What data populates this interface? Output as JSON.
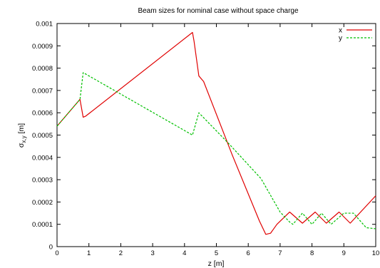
{
  "chart_data": {
    "type": "line",
    "title": "Beam sizes for nominal case without space charge",
    "xlabel": "z [m]",
    "ylabel": "σx,y [m]",
    "ylabel_parts": {
      "base": "σ",
      "sub": "x,y",
      "unit": " [m]"
    },
    "xlim": [
      0,
      10
    ],
    "ylim": [
      0,
      0.001
    ],
    "xticks": [
      0,
      1,
      2,
      3,
      4,
      5,
      6,
      7,
      8,
      9,
      10
    ],
    "xtick_labels": [
      "0",
      "1",
      "2",
      "3",
      "4",
      "5",
      "6",
      "7",
      "8",
      "9",
      "10"
    ],
    "yticks": [
      0,
      0.0001,
      0.0002,
      0.0003,
      0.0004,
      0.0005,
      0.0006,
      0.0007,
      0.0008,
      0.0009,
      0.001
    ],
    "ytick_labels": [
      "0",
      "0.0001",
      "0.0002",
      "0.0003",
      "0.0004",
      "0.0005",
      "0.0006",
      "0.0007",
      "0.0008",
      "0.0009",
      "0.001"
    ],
    "grid": false,
    "legend": "top-right",
    "series": [
      {
        "name": "x",
        "color": "#e00000",
        "dash": "solid",
        "points": [
          [
            0,
            0.00054
          ],
          [
            0.72,
            0.00066
          ],
          [
            0.82,
            0.00058
          ],
          [
            0.9,
            0.000585
          ],
          [
            4.25,
            0.00096
          ],
          [
            4.3,
            0.00092
          ],
          [
            4.45,
            0.000765
          ],
          [
            4.6,
            0.00074
          ],
          [
            5.5,
            0.00041
          ],
          [
            6.35,
            0.000115
          ],
          [
            6.55,
            5.5e-05
          ],
          [
            6.7,
            6e-05
          ],
          [
            6.9,
            0.0001
          ],
          [
            7.3,
            0.000155
          ],
          [
            7.7,
            0.000105
          ],
          [
            8.1,
            0.000155
          ],
          [
            8.45,
            0.000105
          ],
          [
            8.85,
            0.000155
          ],
          [
            9.2,
            0.000105
          ],
          [
            10,
            0.000228
          ]
        ]
      },
      {
        "name": "y",
        "color": "#00c000",
        "dash": "dashed",
        "points": [
          [
            0,
            0.00054
          ],
          [
            0.72,
            0.00066
          ],
          [
            0.82,
            0.00078
          ],
          [
            4.25,
            0.0005
          ],
          [
            4.45,
            0.0006
          ],
          [
            5.4,
            0.00046
          ],
          [
            6.4,
            0.000305
          ],
          [
            6.7,
            0.00023
          ],
          [
            7.0,
            0.000155
          ],
          [
            7.3,
            0.00011
          ],
          [
            7.4,
            0.0001
          ],
          [
            7.7,
            0.00015
          ],
          [
            8.0,
            0.0001
          ],
          [
            8.3,
            0.00015
          ],
          [
            8.6,
            0.0001
          ],
          [
            9.0,
            0.00015
          ],
          [
            9.3,
            0.00015
          ],
          [
            9.7,
            8.5e-05
          ],
          [
            10,
            8e-05
          ]
        ]
      }
    ]
  }
}
